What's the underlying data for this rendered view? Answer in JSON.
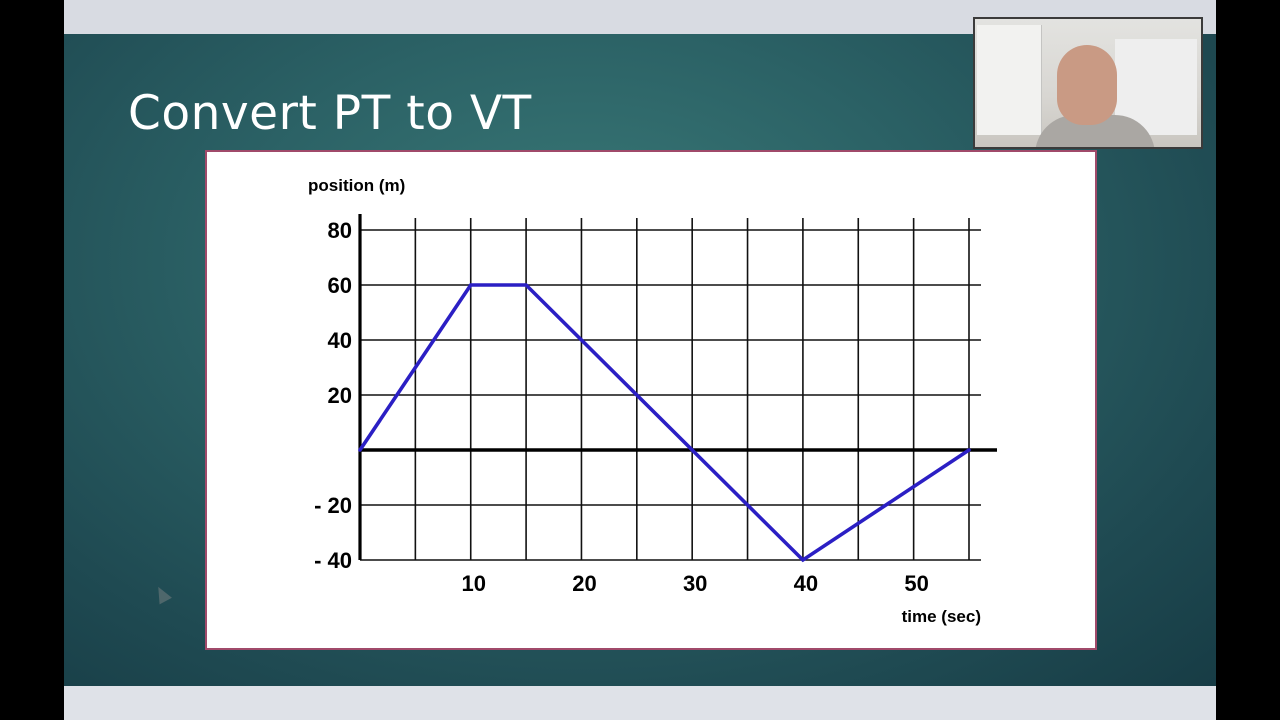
{
  "slide": {
    "title": "Convert PT to VT"
  },
  "webcam": {
    "icon": "person-webcam-feed"
  },
  "cursor": {
    "icon": "mouse-pointer-icon"
  },
  "chart_data": {
    "type": "line",
    "title": "",
    "xlabel": "time (sec)",
    "ylabel": "position (m)",
    "xlim": [
      0,
      55
    ],
    "ylim": [
      -40,
      80
    ],
    "grid": true,
    "x_ticks": [
      {
        "value": 10,
        "label": "10"
      },
      {
        "value": 20,
        "label": "20"
      },
      {
        "value": 30,
        "label": "30"
      },
      {
        "value": 40,
        "label": "40"
      },
      {
        "value": 50,
        "label": "50"
      }
    ],
    "y_ticks": [
      {
        "value": 80,
        "label": "80"
      },
      {
        "value": 60,
        "label": "60"
      },
      {
        "value": 40,
        "label": "40"
      },
      {
        "value": 20,
        "label": "20"
      },
      {
        "value": -20,
        "label": "- 20"
      },
      {
        "value": -40,
        "label": "- 40"
      }
    ],
    "series": [
      {
        "color": "#2b1fc4",
        "points": [
          {
            "x": 0,
            "y": 0
          },
          {
            "x": 10,
            "y": 60
          },
          {
            "x": 15,
            "y": 60
          },
          {
            "x": 30,
            "y": 0
          },
          {
            "x": 40,
            "y": -40
          },
          {
            "x": 55,
            "y": 0
          }
        ]
      }
    ]
  }
}
